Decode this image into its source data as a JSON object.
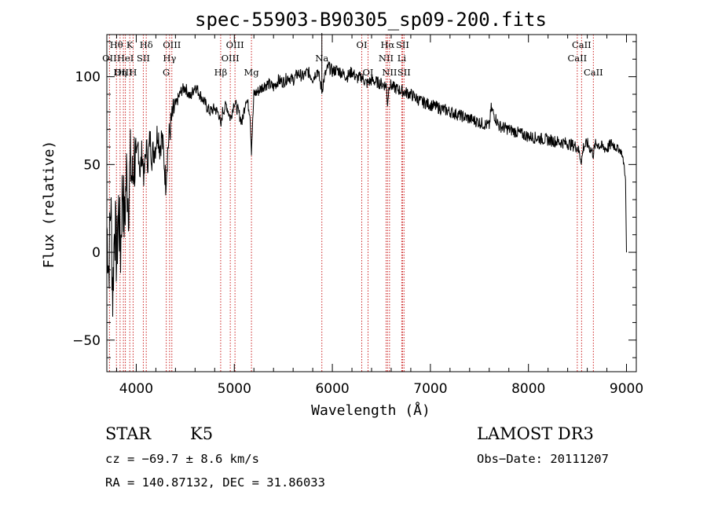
{
  "chart_data": {
    "type": "line",
    "title": "spec-55903-B90305_sp09-200.fits",
    "xlabel": "Wavelength (Å)",
    "ylabel": "Flux (relative)",
    "xlim": [
      3700,
      9100
    ],
    "ylim": [
      -68,
      124
    ],
    "xticks": [
      4000,
      5000,
      6000,
      7000,
      8000,
      9000
    ],
    "yticks": [
      -50,
      0,
      50,
      100
    ],
    "series": [
      {
        "name": "flux",
        "x": [
          3700,
          3720,
          3740,
          3760,
          3780,
          3800,
          3820,
          3840,
          3860,
          3880,
          3900,
          3920,
          3940,
          3960,
          3980,
          4000,
          4020,
          4040,
          4060,
          4080,
          4100,
          4120,
          4140,
          4160,
          4180,
          4200,
          4220,
          4240,
          4260,
          4280,
          4300,
          4320,
          4340,
          4360,
          4380,
          4400,
          4430,
          4460,
          4500,
          4550,
          4600,
          4650,
          4700,
          4750,
          4800,
          4850,
          4861,
          4880,
          4920,
          4960,
          5000,
          5040,
          5080,
          5120,
          5160,
          5175,
          5200,
          5250,
          5300,
          5350,
          5400,
          5450,
          5500,
          5550,
          5600,
          5650,
          5700,
          5750,
          5800,
          5850,
          5893,
          5920,
          5960,
          6000,
          6050,
          6100,
          6150,
          6200,
          6250,
          6300,
          6350,
          6400,
          6450,
          6500,
          6550,
          6563,
          6580,
          6620,
          6660,
          6700,
          6750,
          6800,
          6850,
          6900,
          6950,
          7000,
          7100,
          7200,
          7300,
          7400,
          7500,
          7600,
          7620,
          7700,
          7800,
          7900,
          8000,
          8100,
          8200,
          8300,
          8400,
          8500,
          8542,
          8560,
          8600,
          8662,
          8680,
          8700,
          8750,
          8800,
          8850,
          8900,
          8950,
          8980,
          8990,
          9000
        ],
        "values": [
          15,
          -10,
          30,
          -25,
          20,
          -5,
          25,
          0,
          40,
          15,
          45,
          30,
          50,
          40,
          55,
          48,
          62,
          45,
          58,
          42,
          60,
          52,
          65,
          55,
          58,
          62,
          70,
          60,
          66,
          55,
          40,
          58,
          68,
          75,
          80,
          83,
          88,
          92,
          94,
          88,
          95,
          90,
          85,
          80,
          82,
          78,
          70,
          80,
          84,
          76,
          86,
          80,
          74,
          88,
          80,
          58,
          90,
          92,
          95,
          96,
          94,
          98,
          97,
          100,
          98,
          102,
          100,
          103,
          99,
          104,
          92,
          100,
          106,
          103,
          104,
          102,
          100,
          103,
          99,
          100,
          96,
          98,
          97,
          96,
          95,
          85,
          96,
          94,
          93,
          92,
          91,
          90,
          88,
          86,
          85,
          84,
          82,
          80,
          78,
          76,
          74,
          72,
          82,
          72,
          70,
          68,
          66,
          65,
          64,
          63,
          62,
          60,
          52,
          60,
          62,
          56,
          61,
          62,
          60,
          59,
          62,
          60,
          57,
          48,
          40,
          0
        ]
      }
    ],
    "spectral_lines": [
      {
        "name": "Hθ",
        "wavelength": 3798,
        "row": 1
      },
      {
        "name": "OII",
        "wavelength": 3727,
        "row": 2
      },
      {
        "name": "OIII",
        "wavelength": 3869,
        "row": 3
      },
      {
        "name": "K",
        "wavelength": 3934,
        "row": 1
      },
      {
        "name": "HeI",
        "wavelength": 3889,
        "row": 2
      },
      {
        "name": "Hη",
        "wavelength": 3835,
        "row": 3
      },
      {
        "name": "Hδ",
        "wavelength": 4102,
        "row": 1
      },
      {
        "name": "SII",
        "wavelength": 4072,
        "row": 2
      },
      {
        "name": "H",
        "wavelength": 3968,
        "row": 3
      },
      {
        "name": "OIII",
        "wavelength": 4363,
        "row": 1
      },
      {
        "name": "Hγ",
        "wavelength": 4340,
        "row": 2
      },
      {
        "name": "G",
        "wavelength": 4306,
        "row": 3
      },
      {
        "name": "OIII",
        "wavelength": 5007,
        "row": 1
      },
      {
        "name": "OIII",
        "wavelength": 4959,
        "row": 2
      },
      {
        "name": "Hβ",
        "wavelength": 4861,
        "row": 3
      },
      {
        "name": "Mg",
        "wavelength": 5175,
        "row": 3
      },
      {
        "name": "Na",
        "wavelength": 5893,
        "row": 2
      },
      {
        "name": "OI",
        "wavelength": 6300,
        "row": 1
      },
      {
        "name": "OI",
        "wavelength": 6364,
        "row": 3
      },
      {
        "name": "Hα",
        "wavelength": 6563,
        "row": 1
      },
      {
        "name": "SII",
        "wavelength": 6716,
        "row": 1
      },
      {
        "name": "NII",
        "wavelength": 6548,
        "row": 2
      },
      {
        "name": "Li",
        "wavelength": 6708,
        "row": 2
      },
      {
        "name": "NII",
        "wavelength": 6583,
        "row": 3
      },
      {
        "name": "SII",
        "wavelength": 6731,
        "row": 3
      },
      {
        "name": "CaII",
        "wavelength": 8542,
        "row": 1
      },
      {
        "name": "CaII",
        "wavelength": 8498,
        "row": 2
      },
      {
        "name": "CaII",
        "wavelength": 8662,
        "row": 3
      }
    ]
  },
  "info": {
    "object_class": "STAR",
    "subclass": "K5",
    "survey": "LAMOST DR3",
    "redshift_line": "cz = −69.7 ± 8.6 km/s",
    "obs_date": "Obs−Date: 20111207",
    "coordinates": "RA = 140.87132, DEC =  31.86033"
  },
  "colors": {
    "line_marker": "#cc2222",
    "spectrum": "#000000",
    "axes": "#000000"
  }
}
